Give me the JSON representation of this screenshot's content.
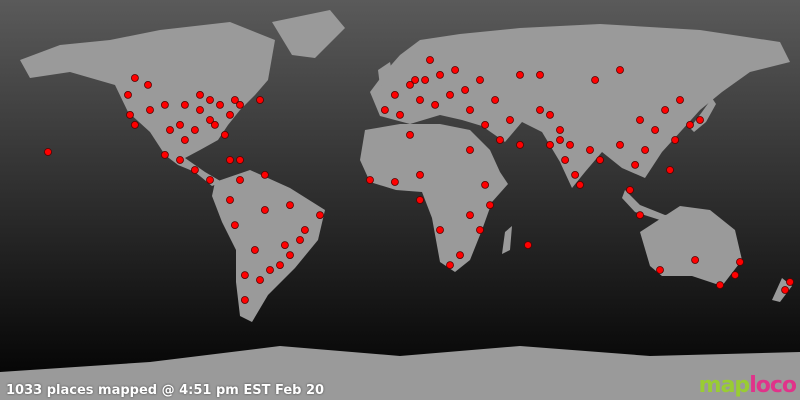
{
  "map": {
    "projection": "equirectangular",
    "background_gradient": [
      "#5a5a5a",
      "#000000"
    ],
    "land_color": "#9a9a9a",
    "marker_color": "#ff0000",
    "marker_stroke": "#550000",
    "markers": [
      [
        -122.4,
        47.3
      ],
      [
        -121.5,
        38.3
      ],
      [
        -119.3,
        33.8
      ],
      [
        -112.5,
        40.5
      ],
      [
        -105.8,
        42.8
      ],
      [
        -96.8,
        42.8
      ],
      [
        -90,
        40.5
      ],
      [
        -85.5,
        45
      ],
      [
        -81,
        42.8
      ],
      [
        -74.3,
        45
      ],
      [
        -72,
        42.8
      ],
      [
        -76.5,
        38.3
      ],
      [
        -83.3,
        33.8
      ],
      [
        -92.3,
        31.5
      ],
      [
        -99,
        33.8
      ],
      [
        -96.8,
        27
      ],
      [
        -78.8,
        29.3
      ],
      [
        -72,
        18
      ],
      [
        -119.3,
        54.9
      ],
      [
        -113.4,
        51.8
      ],
      [
        -63,
        45
      ],
      [
        -85.5,
        36
      ],
      [
        -90,
        47.3
      ],
      [
        -103.5,
        31.5
      ],
      [
        -158.4,
        21.6
      ],
      [
        -105.8,
        20.3
      ],
      [
        -99,
        18
      ],
      [
        -92.3,
        13.5
      ],
      [
        -85.5,
        9
      ],
      [
        -76.5,
        18
      ],
      [
        -72,
        9
      ],
      [
        -60.8,
        11.3
      ],
      [
        -76.5,
        0
      ],
      [
        -74.3,
        -11.3
      ],
      [
        -60.8,
        -4.5
      ],
      [
        -49.5,
        -2.3
      ],
      [
        -36,
        -6.8
      ],
      [
        -45,
        -18
      ],
      [
        -49.5,
        -24.8
      ],
      [
        -54,
        -29.3
      ],
      [
        -63,
        -36
      ],
      [
        -69.8,
        -33.8
      ],
      [
        -58.5,
        -31.5
      ],
      [
        -69.8,
        -45
      ],
      [
        -42.8,
        -13.5
      ],
      [
        -51.8,
        -20.3
      ],
      [
        -65.3,
        -22.5
      ],
      [
        6.8,
        54
      ],
      [
        -2.3,
        47.3
      ],
      [
        4.5,
        51.8
      ],
      [
        11.3,
        54
      ],
      [
        18,
        56.3
      ],
      [
        9,
        45
      ],
      [
        15.8,
        42.8
      ],
      [
        22.5,
        47.3
      ],
      [
        29.3,
        49.5
      ],
      [
        36,
        54
      ],
      [
        24.8,
        58.5
      ],
      [
        13.5,
        63
      ],
      [
        -6.8,
        40.5
      ],
      [
        0,
        38.3
      ],
      [
        31.5,
        40.5
      ],
      [
        42.8,
        45
      ],
      [
        54,
        56.3
      ],
      [
        38.3,
        33.8
      ],
      [
        45,
        27
      ],
      [
        54,
        24.8
      ],
      [
        49.5,
        36
      ],
      [
        63,
        40.5
      ],
      [
        -13.5,
        9
      ],
      [
        -2.3,
        8.1
      ],
      [
        9,
        11.3
      ],
      [
        4.5,
        29.3
      ],
      [
        31.5,
        22.5
      ],
      [
        38.3,
        6.8
      ],
      [
        40.5,
        -2.3
      ],
      [
        31.5,
        -6.8
      ],
      [
        18,
        -13.5
      ],
      [
        27,
        -24.8
      ],
      [
        22.5,
        -29.3
      ],
      [
        36,
        -13.5
      ],
      [
        57.6,
        -20.3
      ],
      [
        9,
        0
      ],
      [
        67.5,
        38.3
      ],
      [
        72,
        31.5
      ],
      [
        76.5,
        24.8
      ],
      [
        74.3,
        18
      ],
      [
        78.8,
        11.3
      ],
      [
        81,
        6.8
      ],
      [
        85.5,
        22.5
      ],
      [
        90,
        18
      ],
      [
        67.5,
        24.8
      ],
      [
        72,
        27
      ],
      [
        99,
        24.8
      ],
      [
        105.8,
        15.8
      ],
      [
        103.5,
        4.5
      ],
      [
        110.3,
        22.5
      ],
      [
        114.8,
        31.5
      ],
      [
        119.3,
        40.5
      ],
      [
        126,
        45
      ],
      [
        135,
        36
      ],
      [
        130.5,
        33.8
      ],
      [
        108,
        36
      ],
      [
        121.5,
        13.5
      ],
      [
        123.8,
        27
      ],
      [
        99,
        58.5
      ],
      [
        87.8,
        54
      ],
      [
        63,
        56.3
      ],
      [
        108,
        -6.8
      ],
      [
        117,
        -31.5
      ],
      [
        144,
        -38.3
      ],
      [
        150.8,
        -33.8
      ],
      [
        153,
        -27.9
      ],
      [
        132.8,
        -27
      ],
      [
        173.3,
        -40.5
      ],
      [
        175.5,
        -36.9
      ]
    ]
  },
  "caption": "1033 places mapped @ 4:51 pm EST Feb 20",
  "logo": {
    "part1": "map",
    "part2": "loco"
  }
}
